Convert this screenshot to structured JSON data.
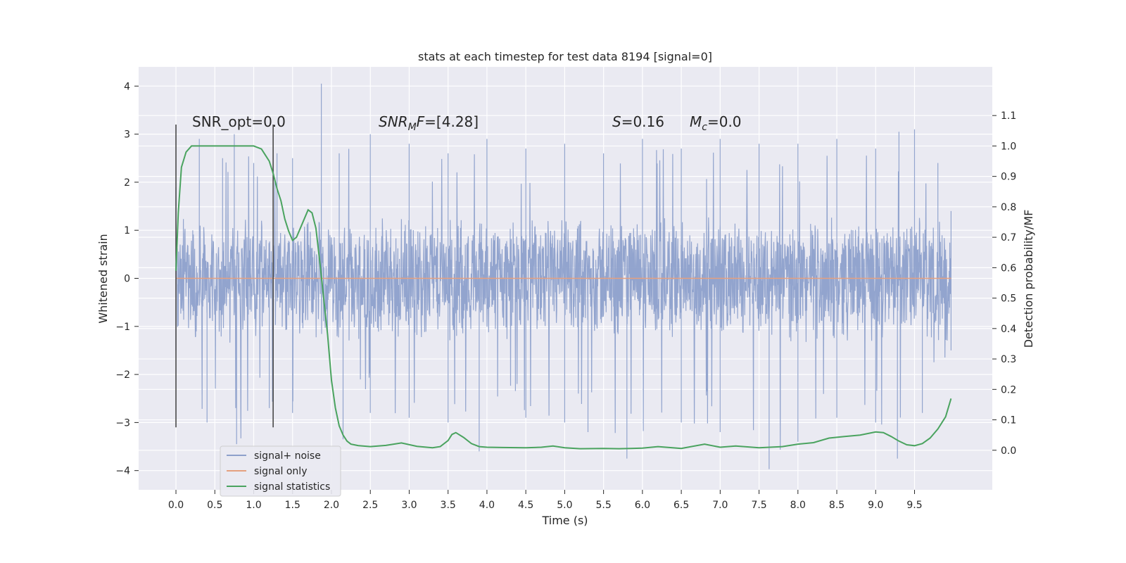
{
  "chart_data": {
    "type": "line",
    "title": "stats at each timestep for test data 8194 [signal=0]",
    "xlabel": "Time (s)",
    "ylabel_left": "Whitened strain",
    "ylabel_right": "Detection probability/MF",
    "xlim": [
      -0.48,
      10.5
    ],
    "ylim_left": [
      -4.4,
      4.4
    ],
    "ylim_right": [
      -0.13,
      1.26
    ],
    "xticks": [
      "0.0",
      "0.5",
      "1.0",
      "1.5",
      "2.0",
      "2.5",
      "3.0",
      "3.5",
      "4.0",
      "4.5",
      "5.0",
      "5.5",
      "6.0",
      "6.5",
      "7.0",
      "7.5",
      "8.0",
      "8.5",
      "9.0",
      "9.5"
    ],
    "yticks_left": [
      "4",
      "3",
      "2",
      "1",
      "0",
      "−1",
      "−2",
      "−3",
      "−4"
    ],
    "yticks_right": [
      "1.1",
      "1.0",
      "0.9",
      "0.8",
      "0.7",
      "0.6",
      "0.5",
      "0.4",
      "0.3",
      "0.2",
      "0.1",
      "0.0"
    ],
    "grid": true,
    "legend_placement": "lower-left",
    "annotations": {
      "snr_opt": "SNR_opt=0.0",
      "snr_mf_label": "SNR",
      "snr_mf_sub": "M",
      "snr_mf_tail": "F",
      "snr_mf_value": "=[4.28]",
      "s_label": "S",
      "s_value": "=0.16",
      "mc_label": "M",
      "mc_sub": "c",
      "mc_value": "=0.0"
    },
    "vertical_markers_x": [
      0.0,
      1.25
    ],
    "series": [
      {
        "name": "signal+ noise",
        "color": "#8da0cb",
        "style": "dense noise, amplitude roughly ±1.5 with spikes to ±3.5",
        "upper_envelope_points": [
          [
            0,
            1.9
          ],
          [
            0.3,
            2.9
          ],
          [
            0.6,
            2.5
          ],
          [
            0.75,
            3.0
          ],
          [
            1.0,
            2.4
          ],
          [
            1.3,
            2.6
          ],
          [
            1.5,
            2.5
          ],
          [
            1.87,
            4.05
          ],
          [
            2.1,
            2.6
          ],
          [
            2.5,
            3.0
          ],
          [
            3.0,
            2.8
          ],
          [
            3.5,
            2.6
          ],
          [
            4.0,
            2.9
          ],
          [
            4.5,
            2.7
          ],
          [
            5.0,
            2.8
          ],
          [
            5.5,
            2.6
          ],
          [
            6.0,
            2.9
          ],
          [
            6.5,
            2.7
          ],
          [
            7.0,
            2.9
          ],
          [
            7.5,
            2.8
          ],
          [
            8.0,
            2.8
          ],
          [
            8.5,
            2.9
          ],
          [
            9.0,
            2.7
          ],
          [
            9.3,
            3.05
          ],
          [
            9.5,
            3.1
          ],
          [
            9.8,
            2.4
          ],
          [
            9.97,
            1.4
          ]
        ],
        "lower_envelope_points": [
          [
            0,
            -1.5
          ],
          [
            0.4,
            -3.0
          ],
          [
            0.78,
            -3.45
          ],
          [
            1.2,
            -2.7
          ],
          [
            1.5,
            -2.8
          ],
          [
            2.15,
            -3.35
          ],
          [
            2.5,
            -2.8
          ],
          [
            3.0,
            -2.9
          ],
          [
            3.5,
            -3.0
          ],
          [
            3.9,
            -3.6
          ],
          [
            4.5,
            -2.9
          ],
          [
            5.0,
            -3.0
          ],
          [
            5.3,
            -3.2
          ],
          [
            5.8,
            -3.75
          ],
          [
            6.5,
            -3.0
          ],
          [
            7.0,
            -3.2
          ],
          [
            7.63,
            -3.97
          ],
          [
            8.0,
            -3.4
          ],
          [
            8.5,
            -2.9
          ],
          [
            9.0,
            -3.0
          ],
          [
            9.28,
            -3.75
          ],
          [
            9.6,
            -2.8
          ],
          [
            9.97,
            -1.5
          ]
        ]
      },
      {
        "name": "signal only",
        "color": "#e5a07f",
        "x": [
          0.0,
          9.97
        ],
        "y": [
          0.0,
          0.0
        ]
      },
      {
        "name": "signal statistics",
        "color": "#4aa35f",
        "axis": "right",
        "x": [
          0.0,
          0.03,
          0.07,
          0.13,
          0.2,
          0.4,
          0.6,
          0.8,
          1.0,
          1.1,
          1.15,
          1.2,
          1.25,
          1.3,
          1.35,
          1.4,
          1.45,
          1.5,
          1.55,
          1.6,
          1.65,
          1.7,
          1.75,
          1.8,
          1.85,
          1.9,
          1.95,
          2.0,
          2.05,
          2.1,
          2.15,
          2.2,
          2.25,
          2.35,
          2.5,
          2.7,
          2.9,
          3.1,
          3.3,
          3.4,
          3.5,
          3.55,
          3.6,
          3.7,
          3.8,
          3.9,
          4.0,
          4.2,
          4.5,
          4.7,
          4.85,
          5.0,
          5.2,
          5.5,
          5.7,
          5.85,
          6.0,
          6.2,
          6.5,
          6.8,
          7.0,
          7.2,
          7.5,
          7.8,
          8.0,
          8.2,
          8.4,
          8.6,
          8.8,
          9.0,
          9.1,
          9.2,
          9.3,
          9.4,
          9.5,
          9.6,
          9.7,
          9.8,
          9.9,
          9.97
        ],
        "y": [
          0.59,
          0.78,
          0.93,
          0.98,
          1.0,
          1.0,
          1.0,
          1.0,
          1.0,
          0.99,
          0.97,
          0.95,
          0.91,
          0.86,
          0.82,
          0.76,
          0.72,
          0.69,
          0.7,
          0.73,
          0.76,
          0.79,
          0.78,
          0.73,
          0.62,
          0.5,
          0.38,
          0.23,
          0.14,
          0.08,
          0.05,
          0.03,
          0.02,
          0.015,
          0.012,
          0.016,
          0.024,
          0.013,
          0.008,
          0.012,
          0.032,
          0.052,
          0.058,
          0.042,
          0.022,
          0.012,
          0.01,
          0.009,
          0.008,
          0.01,
          0.014,
          0.008,
          0.005,
          0.006,
          0.005,
          0.006,
          0.007,
          0.012,
          0.006,
          0.02,
          0.01,
          0.014,
          0.008,
          0.012,
          0.02,
          0.025,
          0.04,
          0.045,
          0.05,
          0.06,
          0.058,
          0.045,
          0.03,
          0.018,
          0.015,
          0.022,
          0.04,
          0.07,
          0.11,
          0.17
        ]
      }
    ]
  }
}
